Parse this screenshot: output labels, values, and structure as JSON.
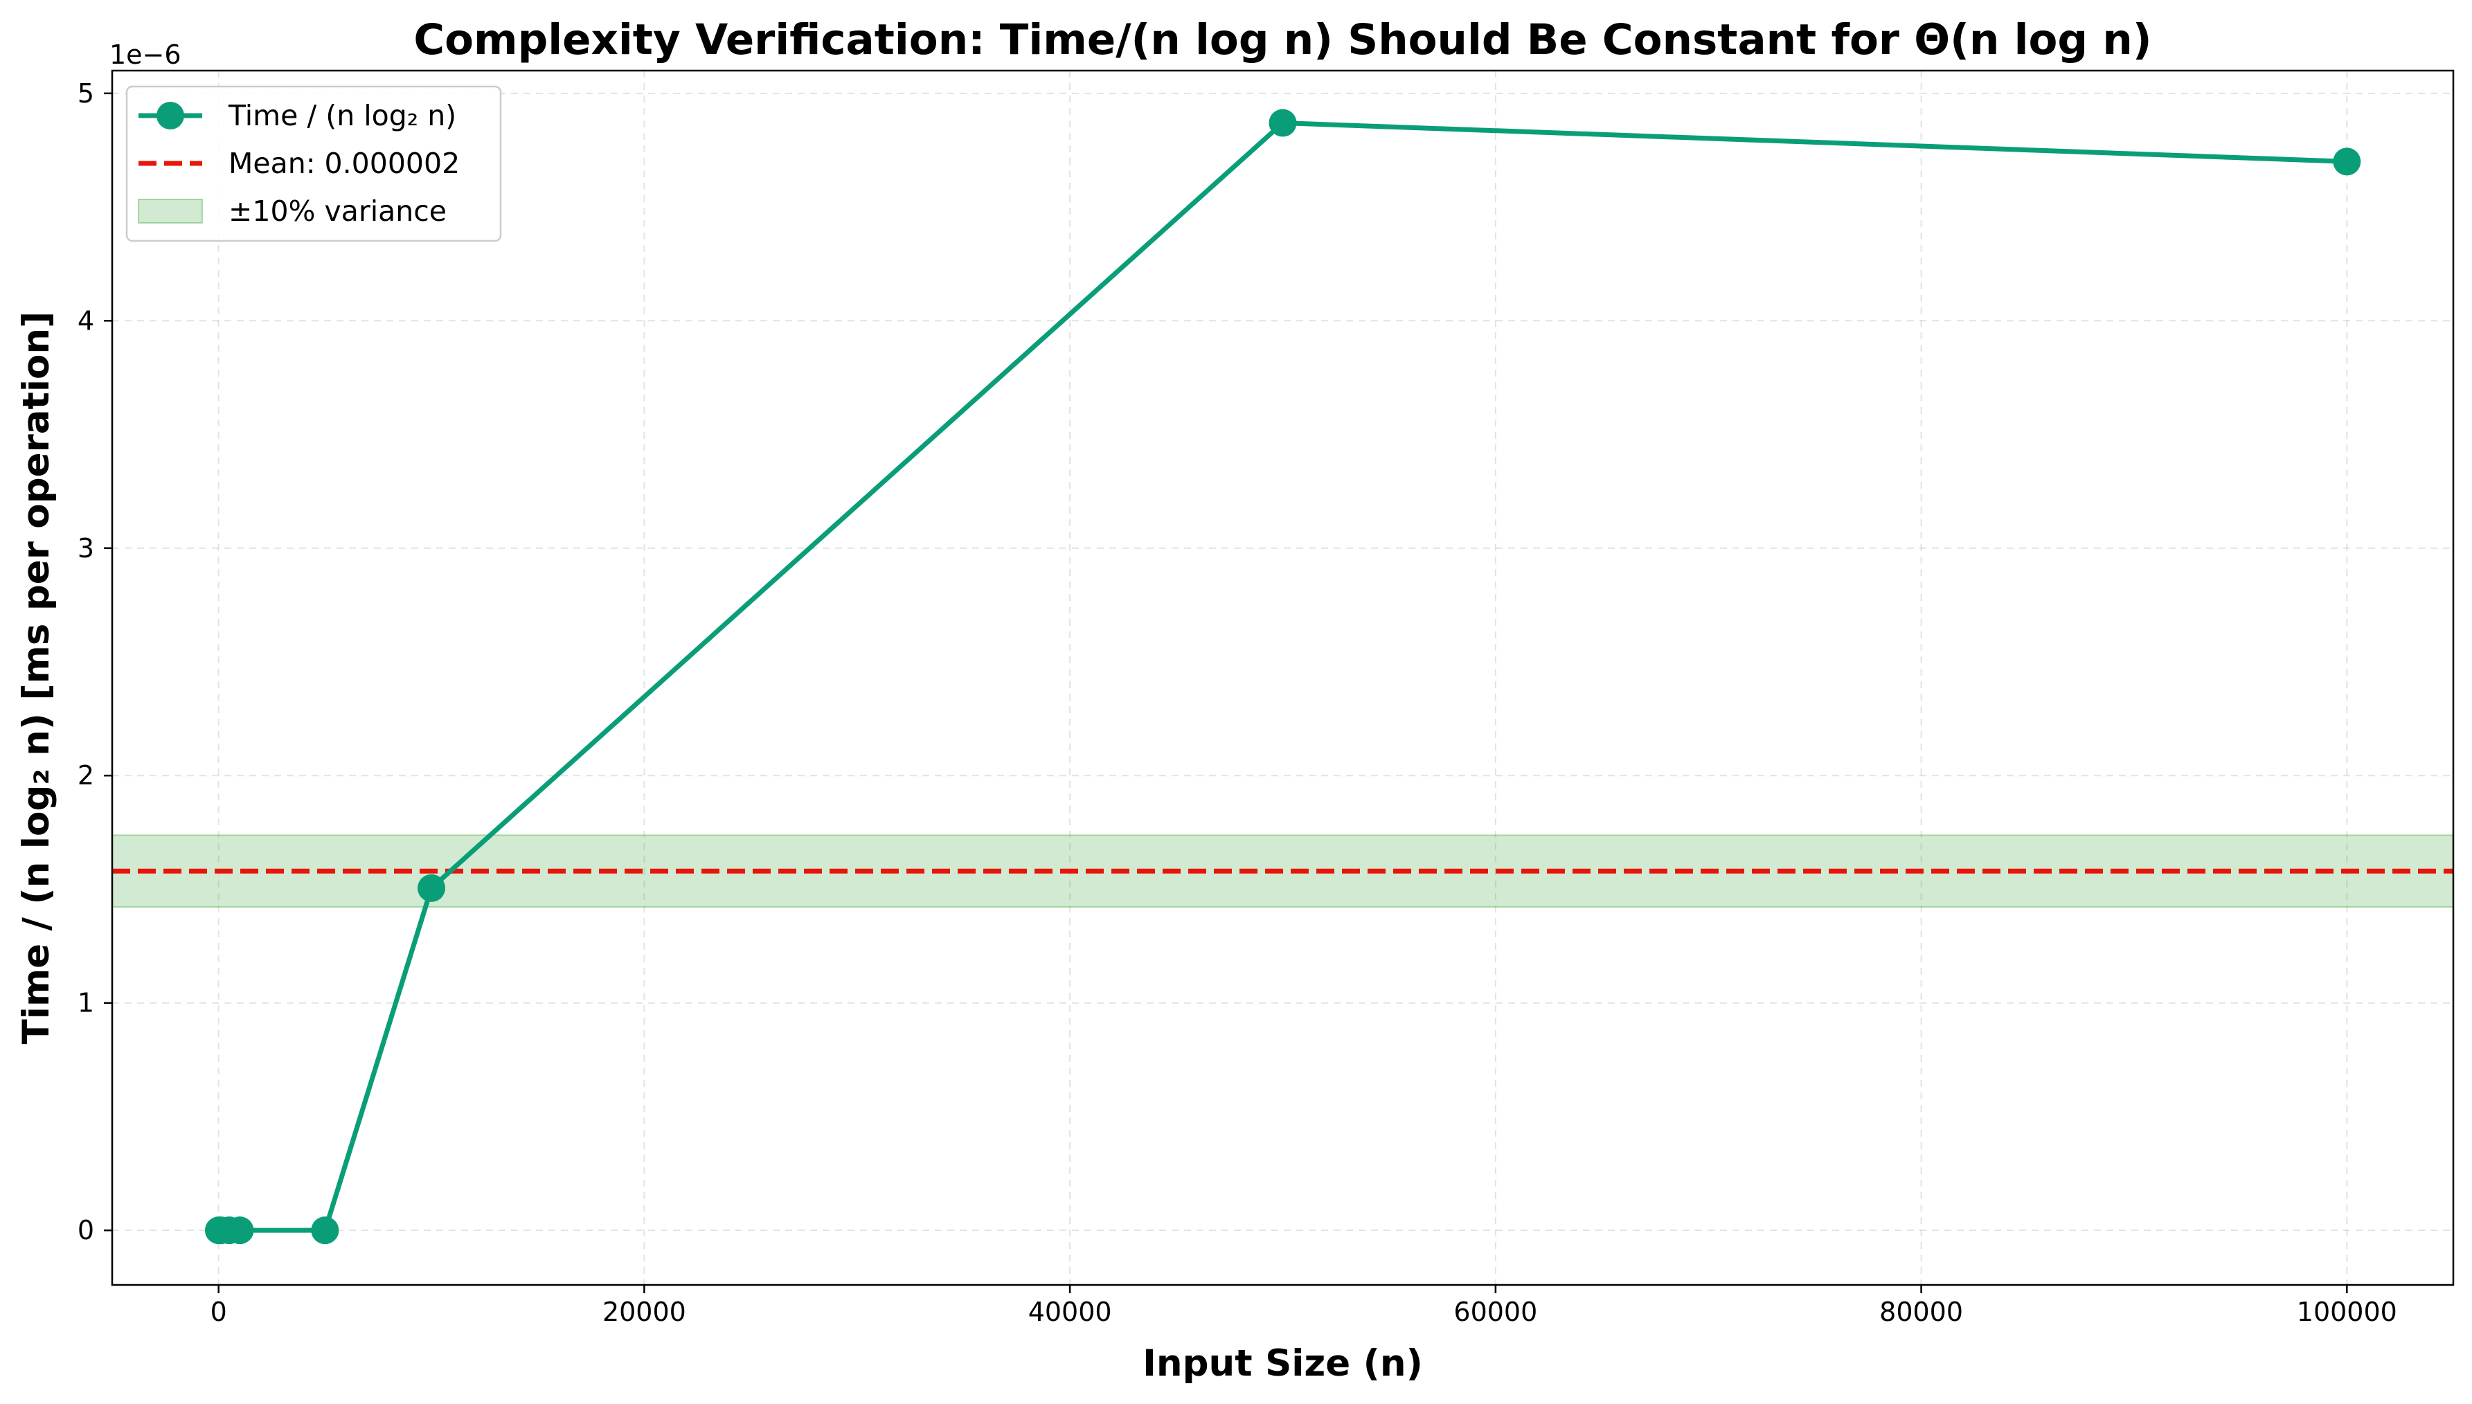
{
  "chart_data": {
    "type": "line",
    "title": "Complexity Verification: Time/(n log n) Should Be Constant for Θ(n log n)",
    "xlabel": "Input Size (n)",
    "ylabel": "Time / (n log₂ n) [ms per operation]",
    "y_offset_label": "1e−6",
    "y_scale_factor": 1e-06,
    "xlim": [
      -5000,
      105000
    ],
    "ylim": [
      -2.4e-07,
      5.1e-06
    ],
    "x_ticks": [
      0,
      20000,
      40000,
      60000,
      80000,
      100000
    ],
    "x_tick_labels": [
      "0",
      "20000",
      "40000",
      "60000",
      "80000",
      "100000"
    ],
    "y_ticks": [
      0,
      1e-06,
      2e-06,
      3e-06,
      4e-06,
      5e-06
    ],
    "y_tick_labels": [
      "0",
      "1",
      "2",
      "3",
      "4",
      "5"
    ],
    "grid": true,
    "legend_position": "top-left",
    "series": [
      {
        "name": "Time / (n log₂ n)",
        "color": "#0a9e78",
        "x": [
          10,
          100,
          500,
          1000,
          5000,
          10000,
          50000,
          100000
        ],
        "y": [
          0,
          0,
          0,
          0,
          0,
          1.505e-06,
          4.87e-06,
          4.7e-06
        ]
      }
    ],
    "mean_line": {
      "label": "Mean: 0.000002",
      "value": 1.58e-06,
      "color": "#e8150b"
    },
    "variance_band": {
      "label": "±10% variance",
      "lower": 1.422e-06,
      "upper": 1.738e-06,
      "color": "#2ca02c"
    }
  }
}
